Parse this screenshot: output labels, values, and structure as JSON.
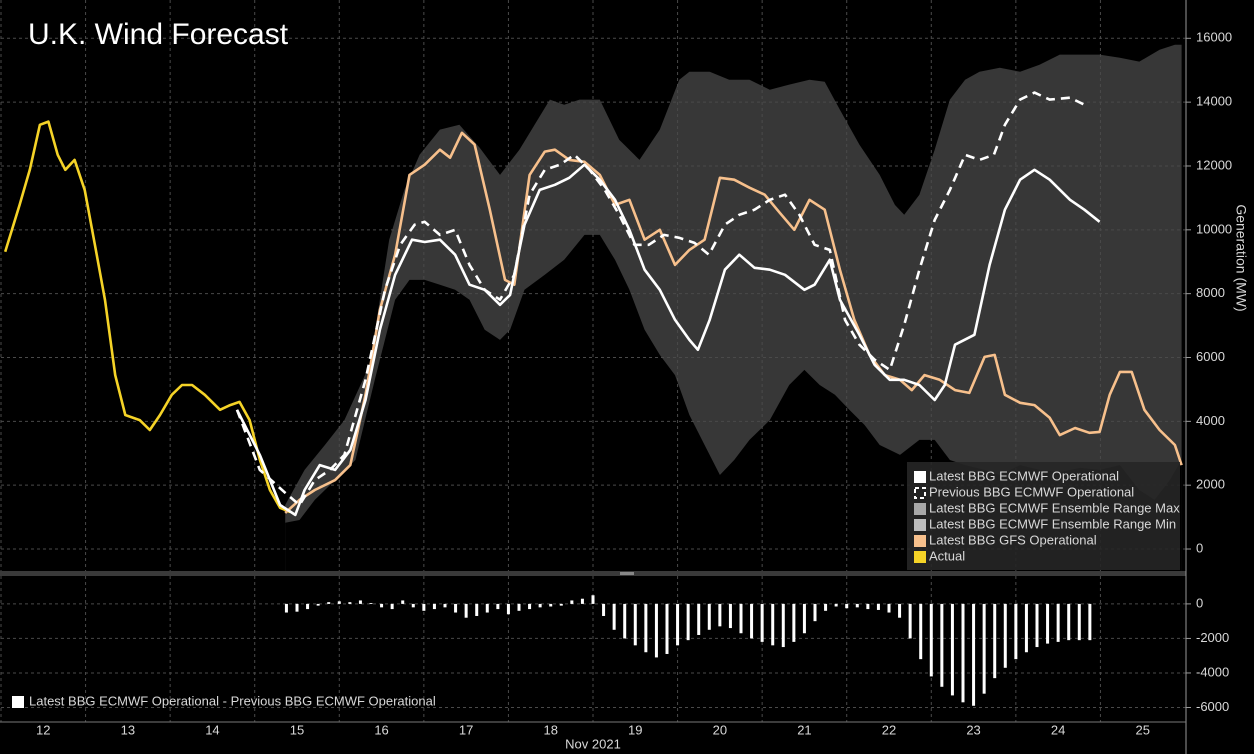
{
  "chart_data": [
    {
      "type": "line",
      "title": "U.K. Wind Forecast",
      "ylabel": "Generation (MW)",
      "xlim": [
        12,
        26
      ],
      "ylim": [
        -720,
        17200
      ],
      "yticks": [
        0,
        2000,
        4000,
        6000,
        8000,
        10000,
        12000,
        14000,
        16000
      ],
      "grid": true,
      "legend": "lower right",
      "series": [
        {
          "name": "Latest BBG ECMWF Operational",
          "color": "#ffffff",
          "style": "solid",
          "x": [
            14.79,
            15.06,
            15.3,
            15.48,
            15.59,
            15.77,
            15.95,
            16.13,
            16.31,
            16.48,
            16.66,
            16.86,
            17.01,
            17.19,
            17.37,
            17.54,
            17.72,
            17.9,
            18.02,
            18.19,
            18.37,
            18.55,
            18.72,
            18.9,
            19.08,
            19.26,
            19.43,
            19.61,
            19.79,
            19.97,
            20.14,
            20.24,
            20.38,
            20.56,
            20.73,
            20.91,
            21.09,
            21.27,
            21.5,
            21.62,
            21.8,
            21.92,
            22.15,
            22.33,
            22.51,
            22.68,
            22.86,
            23.04,
            23.16,
            23.28,
            23.51,
            23.69,
            23.87,
            24.05,
            24.22,
            24.4,
            24.64,
            24.81,
            24.99
          ],
          "values": [
            4360,
            2950,
            1380,
            1070,
            1850,
            2630,
            2480,
            3100,
            4670,
            6870,
            8590,
            9690,
            9620,
            9690,
            9220,
            8280,
            8120,
            7650,
            7960,
            10160,
            11250,
            11410,
            11630,
            12040,
            11570,
            10940,
            10000,
            8750,
            8120,
            7180,
            6550,
            6240,
            7180,
            8750,
            9220,
            8810,
            8750,
            8590,
            8120,
            8280,
            9060,
            7810,
            6710,
            5770,
            5300,
            5300,
            5140,
            4670,
            5140,
            6400,
            6710,
            8900,
            10630,
            11570,
            11880,
            11570,
            10940,
            10630,
            10250
          ]
        },
        {
          "name": "Previous BBG ECMWF Operational",
          "color": "#ffffff",
          "style": "dashed",
          "x": [
            14.79,
            15.06,
            15.36,
            15.53,
            15.71,
            15.89,
            16.06,
            16.31,
            16.54,
            16.72,
            16.89,
            17.01,
            17.19,
            17.37,
            17.54,
            17.72,
            17.9,
            18.07,
            18.25,
            18.43,
            18.61,
            18.78,
            18.96,
            19.14,
            19.31,
            19.49,
            19.66,
            19.84,
            20.02,
            20.2,
            20.37,
            20.56,
            20.73,
            20.91,
            21.09,
            21.27,
            21.44,
            21.62,
            21.8,
            21.98,
            22.15,
            22.33,
            22.51,
            22.68,
            22.86,
            23.04,
            23.22,
            23.4,
            23.57,
            23.74,
            23.87,
            24.05,
            24.22,
            24.4,
            24.64,
            24.81
          ],
          "values": [
            4360,
            2480,
            1760,
            1380,
            2160,
            2480,
            2950,
            5300,
            8120,
            9530,
            10160,
            10250,
            9840,
            10000,
            8900,
            8120,
            7810,
            8590,
            11100,
            11880,
            12040,
            12350,
            11880,
            11250,
            10470,
            9530,
            9530,
            9840,
            9750,
            9590,
            9220,
            10160,
            10470,
            10630,
            10940,
            11100,
            10470,
            9530,
            9370,
            7180,
            6400,
            5930,
            5610,
            7020,
            8750,
            10310,
            11250,
            12350,
            12190,
            12350,
            13290,
            14080,
            14300,
            14080,
            14140,
            13920
          ]
        },
        {
          "name": "Latest BBG ECMWF Ensemble Range Max",
          "color": "#a8a8a8",
          "style": "area",
          "x": [
            15.36,
            15.59,
            15.83,
            16.06,
            16.36,
            16.59,
            16.77,
            16.95,
            17.19,
            17.42,
            17.66,
            17.9,
            18.13,
            18.31,
            18.49,
            18.66,
            18.84,
            19.08,
            19.31,
            19.55,
            19.79,
            20.02,
            20.14,
            20.38,
            20.61,
            20.85,
            21.09,
            21.32,
            21.56,
            21.74,
            21.92,
            22.15,
            22.39,
            22.57,
            22.68,
            22.86,
            23.04,
            23.22,
            23.4,
            23.57,
            23.81,
            24.05,
            24.28,
            24.52,
            24.76,
            24.99,
            25.23,
            25.46,
            25.7,
            25.88,
            25.96
          ],
          "values": [
            1380,
            2480,
            3260,
            4040,
            5770,
            9690,
            11250,
            12350,
            13140,
            13290,
            12570,
            11720,
            12510,
            13290,
            14080,
            13920,
            14080,
            14080,
            12820,
            12190,
            13140,
            14700,
            14950,
            14950,
            14700,
            14700,
            14390,
            14550,
            14700,
            14640,
            13760,
            12670,
            11720,
            10780,
            10470,
            11100,
            12510,
            14080,
            14700,
            14950,
            15080,
            14950,
            15170,
            15490,
            15490,
            15490,
            15390,
            15270,
            15640,
            15800,
            15800
          ]
        },
        {
          "name": "Latest BBG ECMWF Ensemble Range Min",
          "color": "#bdbdbd",
          "style": "area-floor",
          "x": [
            15.36,
            15.53,
            15.71,
            15.95,
            16.19,
            16.42,
            16.66,
            16.83,
            17.01,
            17.19,
            17.37,
            17.54,
            17.72,
            17.9,
            18.02,
            18.19,
            18.43,
            18.66,
            18.9,
            19.08,
            19.26,
            19.43,
            19.61,
            19.79,
            19.97,
            20.14,
            20.32,
            20.5,
            20.67,
            20.85,
            21.09,
            21.32,
            21.5,
            21.68,
            21.86,
            22.03,
            22.21,
            22.39,
            22.63,
            22.86,
            23.04,
            23.22,
            23.4,
            23.63,
            23.81,
            24.05,
            24.28,
            24.52,
            24.76,
            24.99,
            25.23,
            25.46,
            25.64,
            25.82,
            25.96
          ],
          "values": [
            820,
            910,
            1540,
            2160,
            2790,
            5300,
            7810,
            8430,
            8430,
            8280,
            8120,
            7810,
            6870,
            6550,
            6870,
            8120,
            8590,
            9060,
            9840,
            9840,
            9060,
            8120,
            6870,
            6080,
            5450,
            4200,
            3260,
            2320,
            2790,
            3420,
            4040,
            5140,
            5610,
            5140,
            4830,
            4360,
            3890,
            3260,
            2950,
            3420,
            3420,
            2790,
            2630,
            2480,
            2320,
            2630,
            2480,
            2410,
            2540,
            2480,
            2630,
            1850,
            1540,
            2160,
            2790
          ]
        },
        {
          "name": "Latest BBG GFS Operational",
          "color": "#f7c08c",
          "style": "solid",
          "x": [
            15.36,
            15.53,
            15.71,
            15.95,
            16.13,
            16.31,
            16.48,
            16.66,
            16.83,
            17.01,
            17.19,
            17.31,
            17.45,
            17.6,
            17.78,
            17.96,
            18.07,
            18.25,
            18.43,
            18.55,
            18.72,
            18.9,
            19.08,
            19.26,
            19.43,
            19.61,
            19.79,
            19.97,
            20.14,
            20.32,
            20.5,
            20.67,
            20.85,
            21.03,
            21.21,
            21.38,
            21.56,
            21.74,
            21.92,
            22.09,
            22.27,
            22.45,
            22.63,
            22.77,
            22.92,
            23.1,
            23.28,
            23.45,
            23.63,
            23.75,
            23.87,
            24.05,
            24.22,
            24.4,
            24.52,
            24.7,
            24.87,
            24.99,
            25.11,
            25.23,
            25.37,
            25.52,
            25.7,
            25.88,
            25.96
          ],
          "values": [
            1130,
            1540,
            1850,
            2160,
            2630,
            4830,
            7490,
            9220,
            11720,
            12040,
            12510,
            12260,
            13040,
            12670,
            10630,
            8430,
            8280,
            11720,
            12450,
            12510,
            12190,
            12130,
            11720,
            10780,
            10940,
            9690,
            10000,
            8900,
            9370,
            9690,
            11630,
            11570,
            11320,
            11100,
            10530,
            10000,
            10940,
            10630,
            8750,
            7180,
            6080,
            5450,
            5300,
            4980,
            5450,
            5300,
            4980,
            4890,
            6020,
            6080,
            4830,
            4580,
            4510,
            4110,
            3570,
            3790,
            3640,
            3670,
            4830,
            5550,
            5550,
            4360,
            3730,
            3260,
            2630
          ]
        },
        {
          "name": "Actual",
          "color": "#f5d327",
          "style": "solid",
          "x": [
            12.05,
            12.22,
            12.34,
            12.46,
            12.56,
            12.67,
            12.76,
            12.87,
            12.99,
            13.11,
            13.23,
            13.35,
            13.47,
            13.64,
            13.76,
            13.88,
            14.02,
            14.14,
            14.26,
            14.41,
            14.59,
            14.71,
            14.82,
            14.94,
            15.06,
            15.18,
            15.3,
            15.42
          ],
          "values": [
            9310,
            10780,
            11880,
            13290,
            13390,
            12350,
            11880,
            12190,
            11250,
            9530,
            7800,
            5450,
            4200,
            4040,
            3730,
            4200,
            4830,
            5140,
            5140,
            4830,
            4360,
            4510,
            4610,
            4040,
            2800,
            1850,
            1290,
            1160
          ]
        }
      ]
    },
    {
      "type": "bar",
      "xlabel": "Nov 2021",
      "xlim": [
        12,
        26
      ],
      "ylim": [
        -6840,
        1500
      ],
      "xticks": [
        12,
        13,
        14,
        15,
        16,
        17,
        18,
        19,
        20,
        21,
        22,
        23,
        24,
        25
      ],
      "yticks": [
        0,
        -2000,
        -4000,
        -6000
      ],
      "grid": true,
      "legend": "lower left",
      "series": [
        {
          "name": "Latest BBG ECMWF Operational - Previous BBG ECMWF Operational",
          "color": "#ffffff",
          "x": [
            15.375,
            15.5,
            15.625,
            15.75,
            15.875,
            16,
            16.125,
            16.25,
            16.375,
            16.5,
            16.625,
            16.75,
            16.875,
            17,
            17.125,
            17.25,
            17.375,
            17.5,
            17.625,
            17.75,
            17.875,
            18,
            18.125,
            18.25,
            18.375,
            18.5,
            18.625,
            18.75,
            18.875,
            19,
            19.125,
            19.25,
            19.375,
            19.5,
            19.625,
            19.75,
            19.875,
            20,
            20.125,
            20.25,
            20.375,
            20.5,
            20.625,
            20.75,
            20.875,
            21,
            21.125,
            21.25,
            21.375,
            21.5,
            21.625,
            21.75,
            21.875,
            22,
            22.125,
            22.25,
            22.375,
            22.5,
            22.625,
            22.75,
            22.875,
            23,
            23.125,
            23.25,
            23.375,
            23.5,
            23.625,
            23.75,
            23.875,
            24,
            24.125,
            24.25,
            24.375,
            24.5,
            24.625,
            24.75,
            24.875
          ],
          "values": [
            -500,
            -450,
            -300,
            -100,
            100,
            150,
            100,
            200,
            50,
            -200,
            -300,
            200,
            -200,
            -400,
            -300,
            -200,
            -500,
            -800,
            -700,
            -500,
            -300,
            -600,
            -400,
            -300,
            -200,
            -150,
            -100,
            200,
            300,
            500,
            -700,
            -1500,
            -2000,
            -2400,
            -2800,
            -3100,
            -2900,
            -2400,
            -2100,
            -1800,
            -1500,
            -1300,
            -1400,
            -1700,
            -2000,
            -2200,
            -2400,
            -2500,
            -2200,
            -1700,
            -1000,
            -400,
            -150,
            -250,
            -200,
            -300,
            -350,
            -500,
            -800,
            -2000,
            -3200,
            -4200,
            -4800,
            -5300,
            -5700,
            -5900,
            -5200,
            -4300,
            -3700,
            -3200,
            -2800,
            -2500,
            -2300,
            -2200,
            -2100,
            -2100,
            -2100
          ]
        }
      ]
    }
  ]
}
